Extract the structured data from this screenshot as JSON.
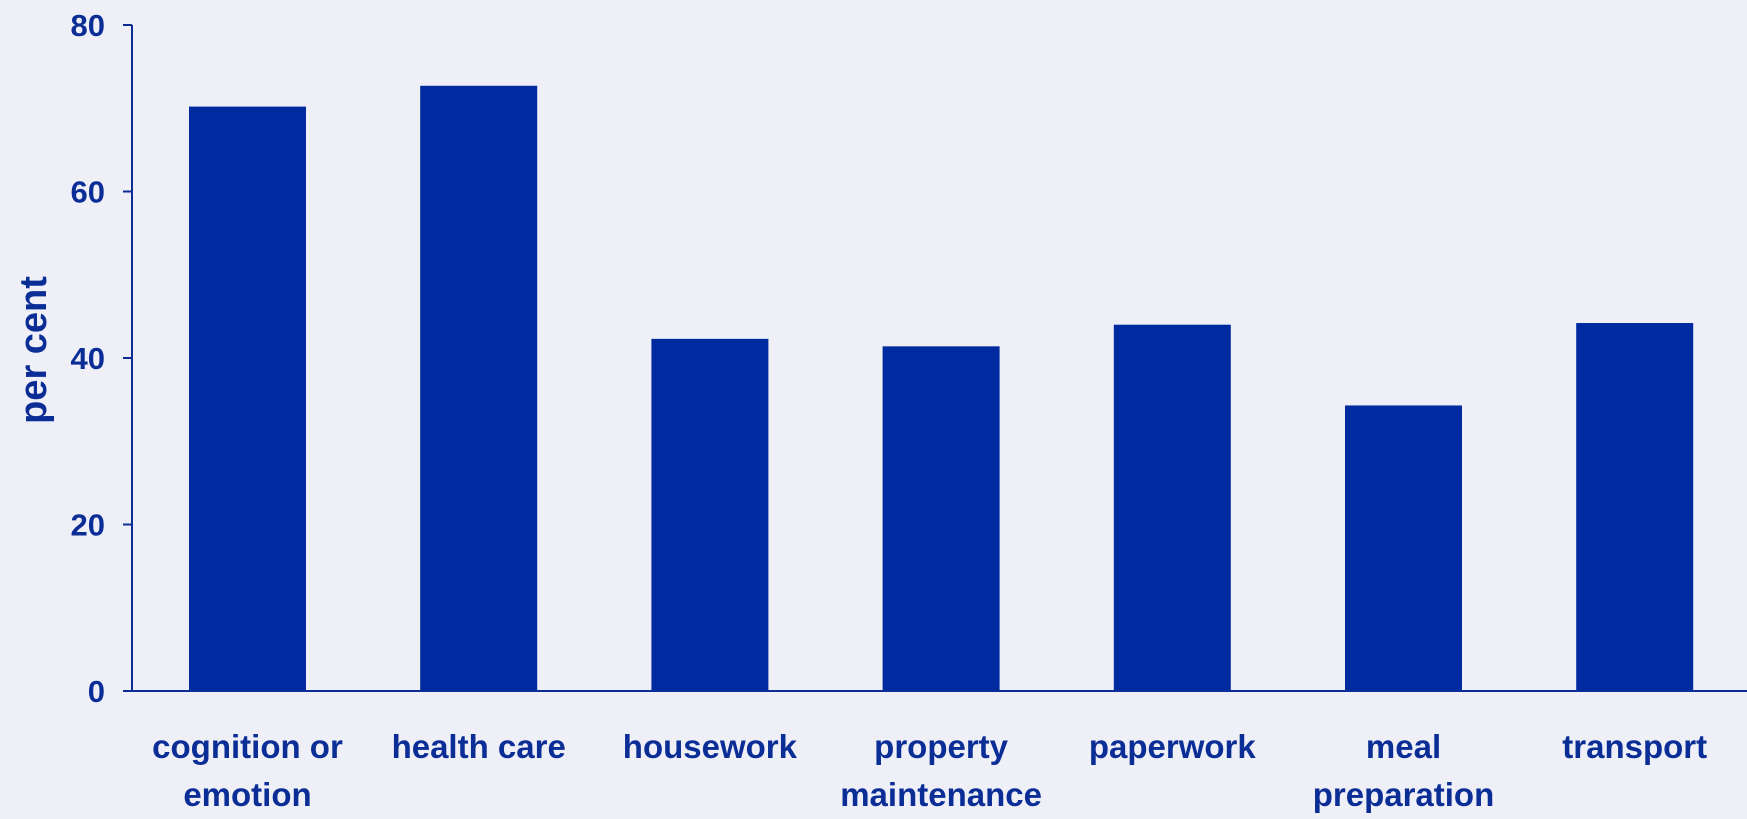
{
  "chart_data": {
    "type": "bar",
    "categories": [
      [
        "cognition or",
        "emotion"
      ],
      [
        "health care"
      ],
      [
        "housework"
      ],
      [
        "property",
        "maintenance"
      ],
      [
        "paperwork"
      ],
      [
        "meal",
        "preparation"
      ],
      [
        "transport"
      ]
    ],
    "values": [
      70.2,
      72.7,
      42.3,
      41.4,
      44.0,
      34.3,
      44.2
    ],
    "title": "",
    "xlabel": "",
    "ylabel": "per cent",
    "ylim": [
      0,
      80
    ],
    "yticks": [
      0,
      20,
      40,
      60,
      80
    ],
    "grid": false,
    "colors": {
      "bar": "#002aa0",
      "axis": "#0a2d96",
      "text": "#0a2d96",
      "background": "#eeeff7"
    }
  }
}
